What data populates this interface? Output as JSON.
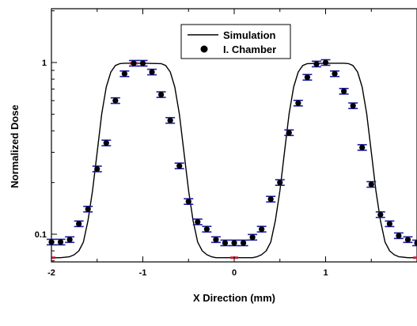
{
  "chart_data": {
    "type": "scatter",
    "xlabel": "X Direction (mm)",
    "ylabel": "Normalized Dose",
    "xlim": [
      -2,
      2
    ],
    "ylim": [
      0.05,
      2
    ],
    "y_scale": "log",
    "x_ticks": [
      -2,
      -1,
      0,
      1
    ],
    "x_tick_labels": [
      "-2",
      "-1",
      "0",
      "1"
    ],
    "y_ticks": [
      0.1,
      1
    ],
    "y_tick_labels": [
      "0.1",
      "1"
    ],
    "legend": {
      "position": "top-center",
      "entries": [
        "Simulation",
        "I. Chamber"
      ]
    },
    "series": [
      {
        "name": "Simulation",
        "kind": "line",
        "color": "#000000",
        "x": [
          -2,
          -1.9,
          -1.8,
          -1.75,
          -1.7,
          -1.65,
          -1.6,
          -1.55,
          -1.5,
          -1.45,
          -1.4,
          -1.35,
          -1.3,
          -1.25,
          -1.2,
          -1.0,
          -0.8,
          -0.75,
          -0.7,
          -0.65,
          -0.6,
          -0.55,
          -0.5,
          -0.45,
          -0.4,
          -0.35,
          -0.3,
          -0.25,
          -0.2,
          -0.1,
          0,
          0.1,
          0.2,
          0.25,
          0.3,
          0.35,
          0.4,
          0.45,
          0.5,
          0.55,
          0.6,
          0.65,
          0.7,
          0.75,
          0.8,
          1.0,
          1.2,
          1.25,
          1.3,
          1.35,
          1.4,
          1.45,
          1.5,
          1.55,
          1.6,
          1.65,
          1.7,
          1.75,
          1.8,
          1.9,
          2
        ],
        "y": [
          0.073,
          0.073,
          0.074,
          0.076,
          0.08,
          0.09,
          0.12,
          0.18,
          0.3,
          0.5,
          0.72,
          0.88,
          0.96,
          0.985,
          0.99,
          0.99,
          0.985,
          0.96,
          0.88,
          0.72,
          0.5,
          0.3,
          0.18,
          0.12,
          0.09,
          0.08,
          0.076,
          0.074,
          0.073,
          0.073,
          0.073,
          0.073,
          0.073,
          0.074,
          0.076,
          0.08,
          0.09,
          0.12,
          0.18,
          0.3,
          0.5,
          0.72,
          0.88,
          0.96,
          0.985,
          0.99,
          0.99,
          0.985,
          0.96,
          0.88,
          0.72,
          0.5,
          0.3,
          0.18,
          0.12,
          0.09,
          0.08,
          0.076,
          0.074,
          0.073,
          0.073
        ]
      },
      {
        "name": "I. Chamber",
        "kind": "scatter",
        "color": "#000000",
        "error_color": "#1a1aa8",
        "x": [
          -2.0,
          -1.9,
          -1.8,
          -1.7,
          -1.6,
          -1.5,
          -1.4,
          -1.3,
          -1.2,
          -1.1,
          -1.0,
          -0.9,
          -0.8,
          -0.7,
          -0.6,
          -0.5,
          -0.4,
          -0.3,
          -0.2,
          -0.1,
          0.0,
          0.1,
          0.2,
          0.3,
          0.4,
          0.5,
          0.6,
          0.7,
          0.8,
          0.9,
          1.0,
          1.1,
          1.2,
          1.3,
          1.4,
          1.5,
          1.6,
          1.7,
          1.8,
          1.9,
          2.0
        ],
        "y": [
          0.09,
          0.09,
          0.093,
          0.115,
          0.14,
          0.24,
          0.34,
          0.6,
          0.86,
          0.99,
          0.99,
          0.88,
          0.65,
          0.46,
          0.25,
          0.155,
          0.118,
          0.107,
          0.093,
          0.089,
          0.089,
          0.089,
          0.096,
          0.107,
          0.16,
          0.2,
          0.39,
          0.58,
          0.82,
          0.98,
          1.0,
          0.86,
          0.68,
          0.56,
          0.32,
          0.195,
          0.13,
          0.115,
          0.098,
          0.093,
          0.089
        ]
      }
    ]
  }
}
